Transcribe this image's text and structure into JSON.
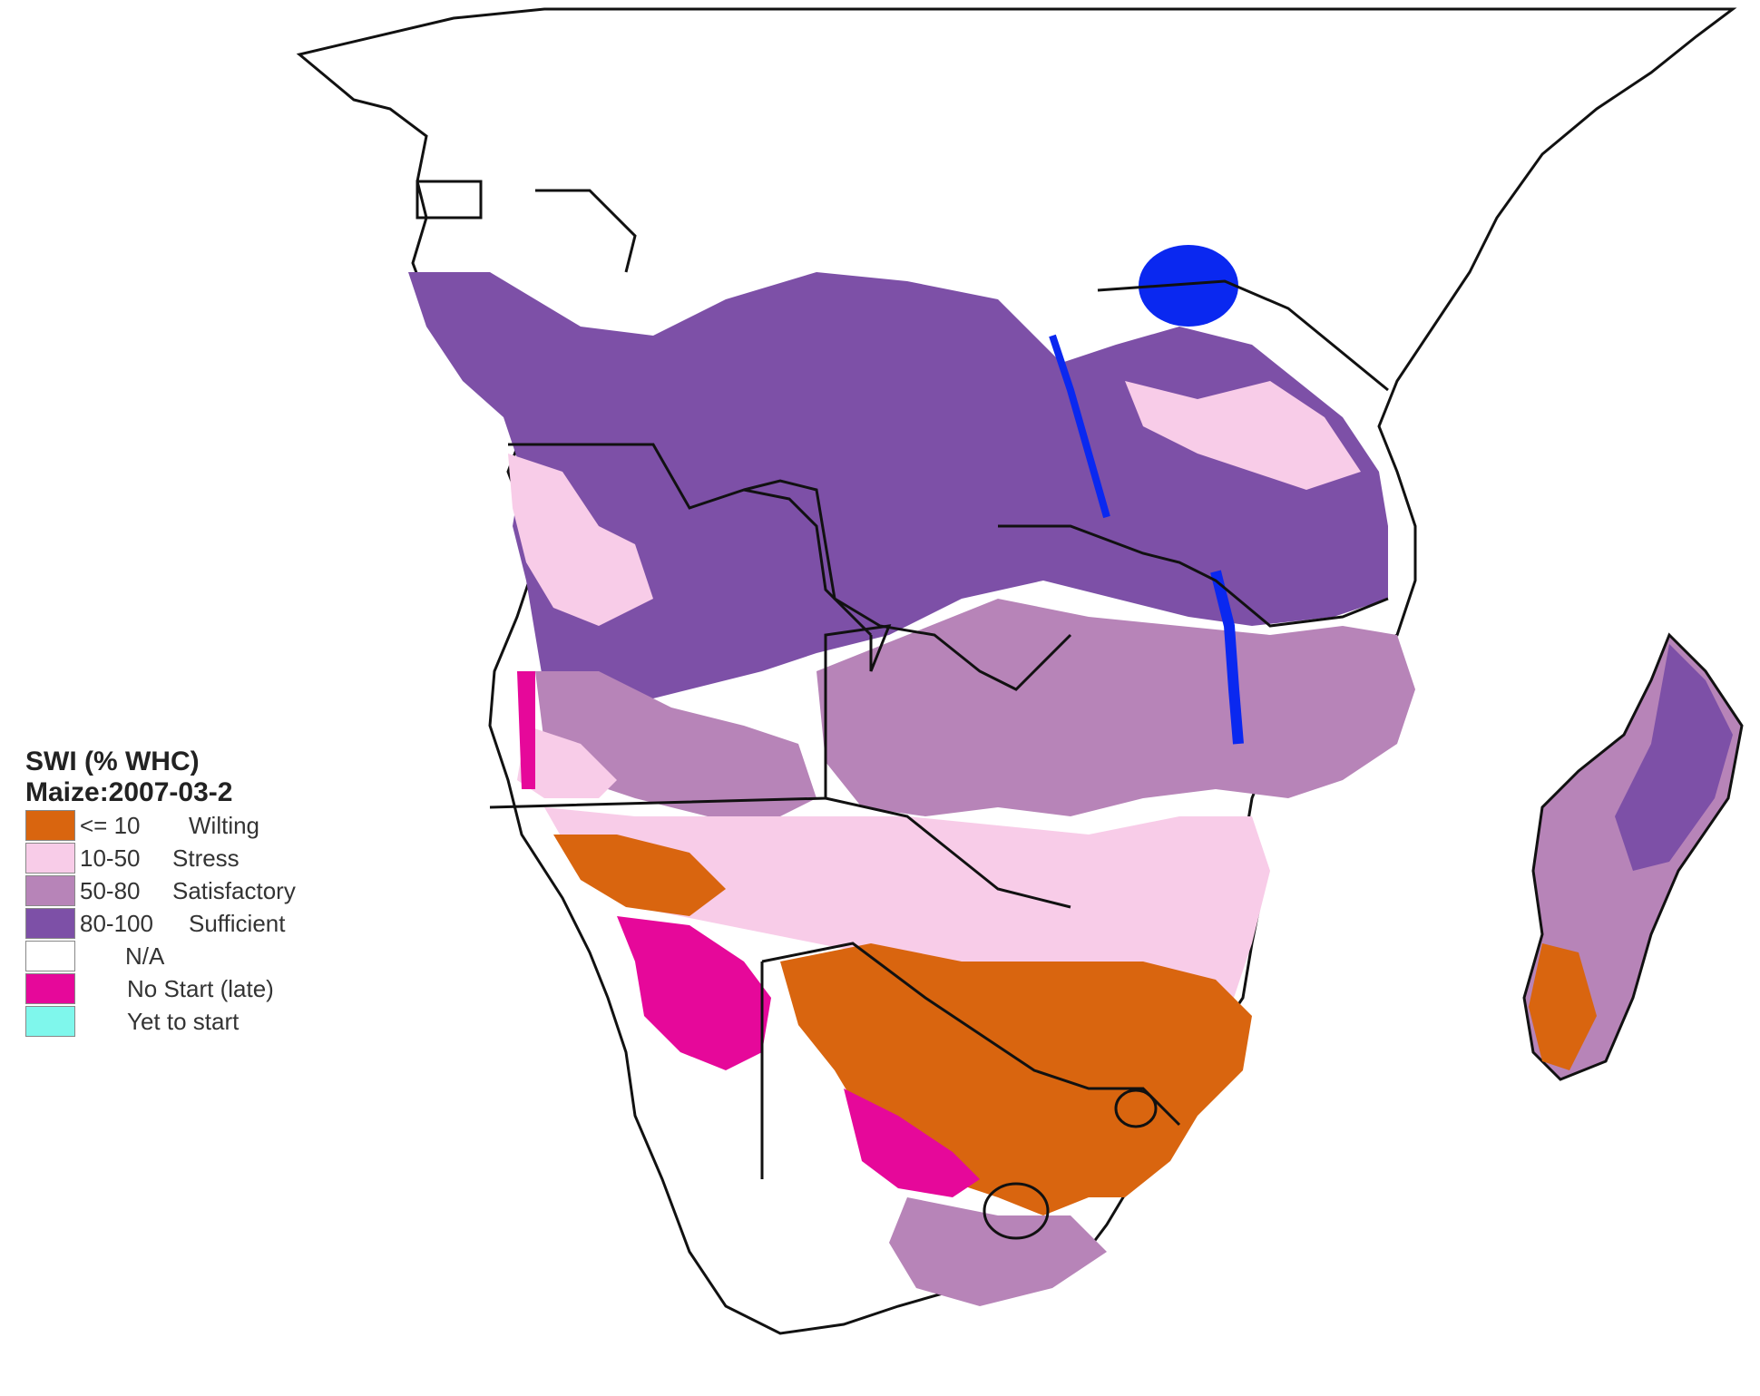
{
  "legend": {
    "title": "SWI (% WHC)",
    "subtitle": "Maize:2007-03-2",
    "items": [
      {
        "range": "<= 10",
        "label": "Wilting",
        "color": "#d9650f"
      },
      {
        "range": "10-50",
        "label": "Stress",
        "color": "#f8cce8"
      },
      {
        "range": "50-80",
        "label": "Satisfactory",
        "color": "#b784b8"
      },
      {
        "range": "80-100",
        "label": "Sufficient",
        "color": "#7d50a7"
      },
      {
        "range": "",
        "label": "N/A",
        "color": "#ffffff"
      },
      {
        "range": "",
        "label": "No Start (late)",
        "color": "#e6089a"
      },
      {
        "range": "",
        "label": "Yet to start",
        "color": "#7ff7ec"
      }
    ]
  },
  "map": {
    "region": "Southern and Central Africa",
    "land_color": "#ffffff",
    "border_color": "#111111",
    "water_color": "#0a28f0"
  }
}
